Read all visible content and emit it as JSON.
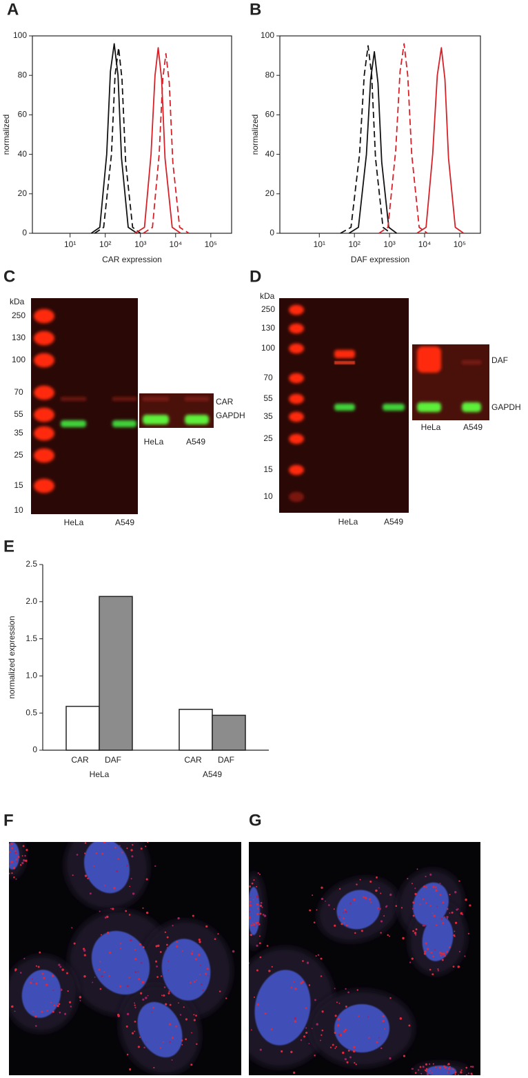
{
  "chart_data": [
    {
      "type": "line",
      "panel": "A",
      "x_label": "CAR expression",
      "y_label": "normalized",
      "log_x": true,
      "xlim": [
        0.85,
        390000
      ],
      "ylim": [
        0,
        100
      ],
      "xticks": [
        {
          "value": 10,
          "label": "10¹"
        },
        {
          "value": 100,
          "label": "10²"
        },
        {
          "value": 1000,
          "label": "10³"
        },
        {
          "value": 10000,
          "label": "10⁴"
        },
        {
          "value": 100000,
          "label": "10⁵"
        }
      ],
      "yticks": [
        0,
        20,
        40,
        60,
        80,
        100
      ],
      "series": [
        {
          "color": "#111111",
          "dashed": false,
          "x": [
            40,
            70,
            110,
            140,
            180,
            230,
            290,
            450,
            800
          ],
          "values": [
            0,
            3,
            40,
            82,
            96,
            80,
            38,
            3,
            0
          ]
        },
        {
          "color": "#111111",
          "dashed": true,
          "x": [
            50,
            90,
            150,
            190,
            240,
            300,
            380,
            600,
            1000
          ],
          "values": [
            0,
            3,
            40,
            80,
            94,
            78,
            36,
            3,
            0
          ]
        },
        {
          "color": "#d62027",
          "dashed": false,
          "x": [
            700,
            1300,
            2000,
            2600,
            3200,
            4000,
            5000,
            8000,
            14000
          ],
          "values": [
            0,
            3,
            40,
            80,
            94,
            78,
            38,
            3,
            0
          ]
        },
        {
          "color": "#d62027",
          "dashed": true,
          "x": [
            1200,
            2200,
            3400,
            4300,
            5300,
            6600,
            8300,
            13000,
            24000
          ],
          "values": [
            0,
            3,
            40,
            78,
            91,
            76,
            36,
            3,
            0
          ]
        }
      ]
    },
    {
      "type": "line",
      "panel": "B",
      "x_label": "DAF expression",
      "y_label": "normalized",
      "log_x": true,
      "xlim": [
        0.75,
        390000
      ],
      "ylim": [
        0,
        100
      ],
      "xticks": [
        {
          "value": 10,
          "label": "10¹"
        },
        {
          "value": 100,
          "label": "10²"
        },
        {
          "value": 1000,
          "label": "10³"
        },
        {
          "value": 10000,
          "label": "10⁴"
        },
        {
          "value": 100000,
          "label": "10⁵"
        }
      ],
      "yticks": [
        0,
        20,
        40,
        60,
        80,
        100
      ],
      "series": [
        {
          "color": "#111111",
          "dashed": true,
          "x": [
            40,
            80,
            140,
            190,
            245,
            310,
            400,
            650,
            1100
          ],
          "values": [
            0,
            3,
            40,
            80,
            95,
            80,
            38,
            3,
            0
          ]
        },
        {
          "color": "#111111",
          "dashed": false,
          "x": [
            70,
            130,
            220,
            290,
            370,
            470,
            600,
            950,
            1600
          ],
          "values": [
            0,
            3,
            40,
            78,
            92,
            76,
            36,
            3,
            0
          ]
        },
        {
          "color": "#d62027",
          "dashed": true,
          "x": [
            500,
            900,
            1500,
            2000,
            2600,
            3300,
            4300,
            7000,
            12000
          ],
          "values": [
            0,
            3,
            42,
            82,
            96,
            80,
            40,
            3,
            0
          ]
        },
        {
          "color": "#d62027",
          "dashed": false,
          "x": [
            6000,
            11000,
            17000,
            23000,
            30000,
            38000,
            48000,
            75000,
            130000
          ],
          "values": [
            0,
            3,
            40,
            80,
            94,
            78,
            38,
            3,
            0
          ]
        }
      ]
    },
    {
      "type": "bar",
      "panel": "E",
      "y_label": "normalized expression",
      "categories": [
        "HeLa",
        "A549"
      ],
      "ylim": [
        0,
        2.5
      ],
      "yticks": [
        0,
        0.5,
        {
          "value": 1,
          "label": "1.0"
        },
        1.5,
        {
          "value": 2,
          "label": "2.0"
        },
        2.5
      ],
      "series": [
        {
          "name": "CAR",
          "color": "#ffffff",
          "values": [
            0.59,
            0.55
          ]
        },
        {
          "name": "DAF",
          "color": "#8c8c8c",
          "values": [
            2.07,
            0.47
          ]
        }
      ]
    }
  ],
  "blots": [
    {
      "panel": "C",
      "unit": "kDa",
      "markers": [
        250,
        130,
        100,
        70,
        55,
        35,
        25,
        15,
        10
      ],
      "lanes": [
        "HeLa",
        "A549"
      ],
      "inset": {
        "bands": [
          "CAR",
          "GAPDH"
        ],
        "lanes": [
          "HeLa",
          "A549"
        ]
      }
    },
    {
      "panel": "D",
      "unit": "kDa",
      "markers": [
        250,
        130,
        100,
        70,
        55,
        35,
        25,
        15,
        10
      ],
      "lanes": [
        "HeLa",
        "A549"
      ],
      "inset": {
        "bands": [
          "DAF",
          "GAPDH"
        ],
        "lanes": [
          "HeLa",
          "A549"
        ]
      }
    }
  ],
  "images": [
    {
      "panel": "F"
    },
    {
      "panel": "G"
    }
  ]
}
